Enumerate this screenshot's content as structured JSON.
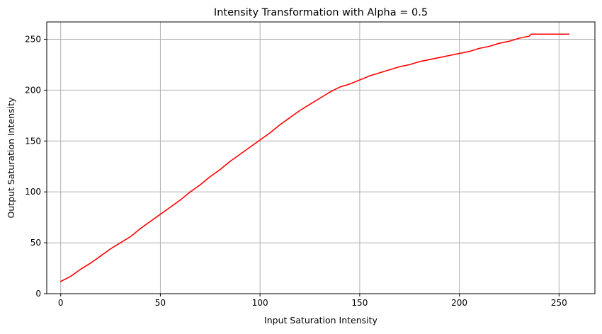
{
  "chart_data": {
    "type": "line",
    "title": "Intensity Transformation with Alpha = 0.5",
    "xlabel": "Input Saturation Intensity",
    "ylabel": "Output Saturation Intensity",
    "xlim": [
      -7,
      268
    ],
    "ylim": [
      0,
      267
    ],
    "xticks": [
      0,
      50,
      100,
      150,
      200,
      250
    ],
    "yticks": [
      0,
      50,
      100,
      150,
      200,
      250
    ],
    "grid": true,
    "legend": "none",
    "series": [
      {
        "color": "#ff0000",
        "x": [
          0,
          5,
          10,
          15,
          20,
          25,
          30,
          35,
          40,
          45,
          50,
          55,
          60,
          65,
          70,
          75,
          80,
          85,
          90,
          95,
          100,
          105,
          110,
          115,
          120,
          125,
          130,
          135,
          140,
          145,
          150,
          155,
          160,
          165,
          170,
          175,
          180,
          185,
          190,
          195,
          200,
          205,
          210,
          215,
          220,
          225,
          230,
          235,
          236,
          240,
          245,
          250,
          255
        ],
        "y": [
          12,
          17,
          24,
          30,
          37,
          44,
          50,
          56,
          64,
          71,
          78,
          85,
          92,
          100,
          107,
          115,
          122,
          130,
          137,
          144,
          151,
          158,
          166,
          173,
          180,
          186,
          192,
          198,
          203,
          206,
          210,
          214,
          217,
          220,
          223,
          225,
          228,
          230,
          232,
          234,
          236,
          238,
          241,
          243,
          246,
          248,
          251,
          253,
          255,
          255,
          255,
          255,
          255
        ]
      }
    ]
  }
}
